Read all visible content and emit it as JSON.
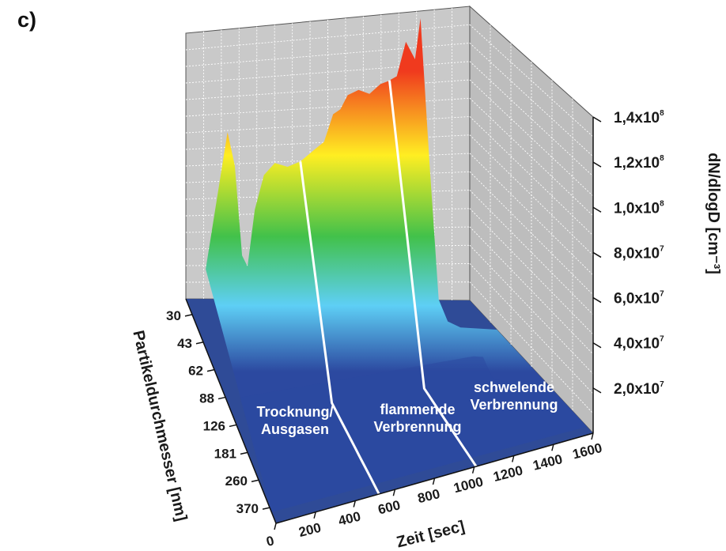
{
  "panel_label": "c)",
  "chart_data": {
    "type": "surface3d",
    "title": "",
    "x_axis": {
      "label": "Zeit [sec]",
      "range": [
        0,
        1600
      ],
      "ticks": [
        "0",
        "200",
        "400",
        "600",
        "800",
        "1000",
        "1200",
        "1400",
        "1600"
      ]
    },
    "y_axis": {
      "label": "Partikeldurchmesser [nm]",
      "ticks": [
        "30",
        "43",
        "62",
        "88",
        "126",
        "181",
        "260",
        "370"
      ]
    },
    "z_axis": {
      "label": "dN/dlogD [cm⁻³]",
      "range": [
        0,
        140000000
      ],
      "ticks": [
        {
          "mantissa": "2,0x10",
          "exp": "7"
        },
        {
          "mantissa": "4,0x10",
          "exp": "7"
        },
        {
          "mantissa": "6,0x10",
          "exp": "7"
        },
        {
          "mantissa": "8,0x10",
          "exp": "7"
        },
        {
          "mantissa": "1,0x10",
          "exp": "8"
        },
        {
          "mantissa": "1,2x10",
          "exp": "8"
        },
        {
          "mantissa": "1,4x10",
          "exp": "8"
        }
      ]
    },
    "phase_boundaries_sec": [
      520,
      1010
    ],
    "annotations": [
      {
        "lines": [
          "Trocknung/",
          "Ausgasen"
        ]
      },
      {
        "lines": [
          "flammende",
          "Verbrennung"
        ]
      },
      {
        "lines": [
          "schwelende",
          "Verbrennung"
        ]
      }
    ],
    "ridge_max_dNdlogD": [
      [
        0,
        35000000
      ],
      [
        40,
        55000000
      ],
      [
        80,
        75000000
      ],
      [
        120,
        95000000
      ],
      [
        160,
        80000000
      ],
      [
        200,
        40000000
      ],
      [
        230,
        35000000
      ],
      [
        270,
        60000000
      ],
      [
        320,
        75000000
      ],
      [
        380,
        80000000
      ],
      [
        450,
        78000000
      ],
      [
        520,
        80000000
      ],
      [
        600,
        85000000
      ],
      [
        650,
        88000000
      ],
      [
        700,
        100000000
      ],
      [
        740,
        102000000
      ],
      [
        780,
        108000000
      ],
      [
        840,
        110000000
      ],
      [
        900,
        108000000
      ],
      [
        960,
        112000000
      ],
      [
        1000,
        113000000
      ],
      [
        1050,
        115000000
      ],
      [
        1100,
        130000000
      ],
      [
        1150,
        122000000
      ],
      [
        1180,
        140000000
      ],
      [
        1230,
        75000000
      ],
      [
        1280,
        15000000
      ],
      [
        1330,
        5000000
      ],
      [
        1400,
        2000000
      ],
      [
        1500,
        1000000
      ],
      [
        1600,
        0
      ]
    ],
    "colormap": [
      "#2c49a0",
      "#5ecff5",
      "#42c14a",
      "#ffee22",
      "#f03a1e"
    ]
  }
}
